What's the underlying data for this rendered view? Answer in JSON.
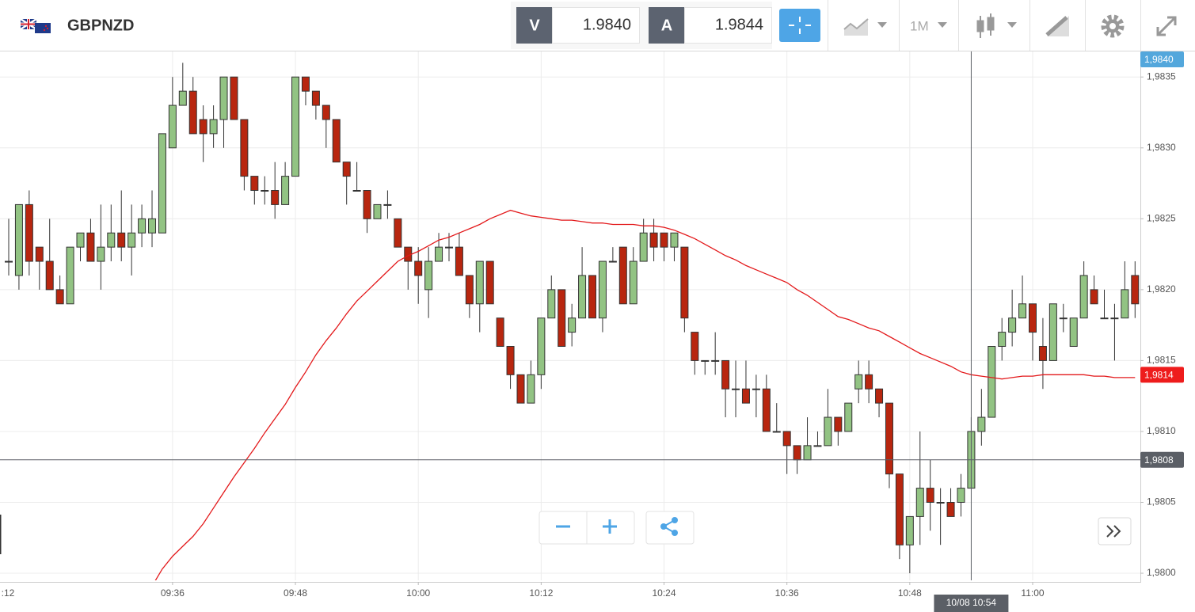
{
  "header": {
    "symbol": "GBPNZD",
    "sell": {
      "label": "V",
      "price": "1.9840"
    },
    "buy": {
      "label": "A",
      "price": "1.9844"
    },
    "timeframe": "1M"
  },
  "chart_data": {
    "type": "candlestick",
    "categories": [
      "09:20",
      "09:21",
      "09:22",
      "09:23",
      "09:24",
      "09:25",
      "09:26",
      "09:27",
      "09:28",
      "09:29",
      "09:30",
      "09:31",
      "09:32",
      "09:33",
      "09:34",
      "09:35",
      "09:36",
      "09:37",
      "09:38",
      "09:39",
      "09:40",
      "09:41",
      "09:42",
      "09:43",
      "09:44",
      "09:45",
      "09:46",
      "09:47",
      "09:48",
      "09:49",
      "09:50",
      "09:51",
      "09:52",
      "09:53",
      "09:54",
      "09:55",
      "09:56",
      "09:57",
      "09:58",
      "09:59",
      "10:00",
      "10:01",
      "10:02",
      "10:03",
      "10:04",
      "10:05",
      "10:06",
      "10:07",
      "10:08",
      "10:09",
      "10:10",
      "10:11",
      "10:12",
      "10:13",
      "10:14",
      "10:15",
      "10:16",
      "10:17",
      "10:18",
      "10:19",
      "10:20",
      "10:21",
      "10:22",
      "10:23",
      "10:24",
      "10:25",
      "10:26",
      "10:27",
      "10:28",
      "10:29",
      "10:30",
      "10:31",
      "10:32",
      "10:33",
      "10:34",
      "10:35",
      "10:36",
      "10:37",
      "10:38",
      "10:39",
      "10:40",
      "10:41",
      "10:42",
      "10:43",
      "10:44",
      "10:45",
      "10:46",
      "10:47",
      "10:48",
      "10:49",
      "10:50",
      "10:51",
      "10:52",
      "10:53",
      "10:54",
      "10:55",
      "10:56",
      "10:57",
      "10:58",
      "10:59",
      "11:00",
      "11:01",
      "11:02",
      "11:03",
      "11:04",
      "11:05",
      "11:06",
      "11:07",
      "11:08",
      "11:09",
      "11:10"
    ],
    "open": [
      1.9822,
      1.9821,
      1.9826,
      1.9823,
      1.9822,
      1.982,
      1.9819,
      1.9823,
      1.9824,
      1.9822,
      1.9823,
      1.9824,
      1.9823,
      1.9824,
      1.9824,
      1.9824,
      1.983,
      1.9833,
      1.9834,
      1.9832,
      1.9831,
      1.9832,
      1.9835,
      1.9832,
      1.9828,
      1.9827,
      1.9827,
      1.9826,
      1.9828,
      1.9835,
      1.9834,
      1.9833,
      1.9832,
      1.9829,
      1.9827,
      1.9827,
      1.9825,
      1.9826,
      1.9825,
      1.9823,
      1.9822,
      1.982,
      1.9822,
      1.9823,
      1.9823,
      1.9821,
      1.9819,
      1.9822,
      1.9818,
      1.9816,
      1.9814,
      1.9812,
      1.9814,
      1.9818,
      1.982,
      1.9817,
      1.9818,
      1.9821,
      1.9818,
      1.9822,
      1.9823,
      1.9819,
      1.9822,
      1.9824,
      1.9824,
      1.9823,
      1.9823,
      1.9817,
      1.9815,
      1.9815,
      1.9815,
      1.9813,
      1.9813,
      1.9813,
      1.9813,
      1.981,
      1.981,
      1.9809,
      1.9808,
      1.9809,
      1.9809,
      1.9811,
      1.981,
      1.9813,
      1.9814,
      1.9813,
      1.9812,
      1.9807,
      1.9802,
      1.9804,
      1.9806,
      1.9805,
      1.9805,
      1.9805,
      1.9806,
      1.981,
      1.9811,
      1.9816,
      1.9817,
      1.9818,
      1.9819,
      1.9816,
      1.9815,
      1.9818,
      1.9816,
      1.9818,
      1.982,
      1.9818,
      1.9818,
      1.9818,
      1.9821
    ],
    "high": [
      1.9825,
      1.9826,
      1.9827,
      1.9823,
      1.9825,
      1.9821,
      1.9823,
      1.9824,
      1.9825,
      1.9826,
      1.9826,
      1.9827,
      1.9826,
      1.9826,
      1.9827,
      1.9831,
      1.9835,
      1.9836,
      1.9835,
      1.9833,
      1.9833,
      1.9835,
      1.9835,
      1.9832,
      1.9828,
      1.9828,
      1.9829,
      1.9829,
      1.9835,
      1.9835,
      1.9834,
      1.9833,
      1.9832,
      1.9829,
      1.9829,
      1.9827,
      1.9826,
      1.9827,
      1.9825,
      1.9823,
      1.9823,
      1.9823,
      1.9824,
      1.9824,
      1.9824,
      1.9821,
      1.9822,
      1.9822,
      1.9818,
      1.9816,
      1.9814,
      1.9815,
      1.9818,
      1.9821,
      1.982,
      1.9819,
      1.9823,
      1.9821,
      1.9822,
      1.9823,
      1.9823,
      1.9823,
      1.9825,
      1.9825,
      1.9824,
      1.9824,
      1.9823,
      1.9817,
      1.9815,
      1.9817,
      1.9815,
      1.9815,
      1.9815,
      1.9814,
      1.9814,
      1.9812,
      1.981,
      1.9809,
      1.9811,
      1.981,
      1.9813,
      1.9811,
      1.9812,
      1.9815,
      1.9815,
      1.9813,
      1.9812,
      1.9807,
      1.9804,
      1.981,
      1.9808,
      1.9806,
      1.9806,
      1.9807,
      1.9811,
      1.9813,
      1.9816,
      1.9818,
      1.982,
      1.9821,
      1.9819,
      1.9818,
      1.9819,
      1.9819,
      1.9818,
      1.9822,
      1.9821,
      1.982,
      1.9819,
      1.9822,
      1.9822
    ],
    "low": [
      1.9821,
      1.982,
      1.9821,
      1.982,
      1.982,
      1.9819,
      1.9819,
      1.9822,
      1.9822,
      1.982,
      1.9822,
      1.9822,
      1.9821,
      1.9823,
      1.9823,
      1.9824,
      1.983,
      1.9833,
      1.9831,
      1.9829,
      1.983,
      1.983,
      1.9832,
      1.9827,
      1.9826,
      1.9826,
      1.9825,
      1.9826,
      1.9828,
      1.9833,
      1.9832,
      1.983,
      1.9829,
      1.9826,
      1.9827,
      1.9824,
      1.9825,
      1.9825,
      1.9823,
      1.982,
      1.9819,
      1.9818,
      1.9822,
      1.9822,
      1.9821,
      1.9818,
      1.9817,
      1.9819,
      1.9816,
      1.9813,
      1.9812,
      1.9812,
      1.9813,
      1.9818,
      1.9816,
      1.9816,
      1.9818,
      1.9818,
      1.9817,
      1.9822,
      1.9819,
      1.9819,
      1.9822,
      1.9822,
      1.9822,
      1.9822,
      1.9817,
      1.9814,
      1.9814,
      1.9814,
      1.9811,
      1.9811,
      1.9812,
      1.9811,
      1.981,
      1.981,
      1.9807,
      1.9807,
      1.9808,
      1.9809,
      1.9809,
      1.9809,
      1.981,
      1.9812,
      1.9812,
      1.9811,
      1.9806,
      1.9801,
      1.98,
      1.9802,
      1.9803,
      1.9802,
      1.9804,
      1.9804,
      1.9806,
      1.9809,
      1.9811,
      1.9815,
      1.9816,
      1.9818,
      1.9815,
      1.9813,
      1.9815,
      1.9817,
      1.9816,
      1.9818,
      1.9819,
      1.9818,
      1.9815,
      1.9818,
      1.9818
    ],
    "close": [
      1.9822,
      1.9826,
      1.9822,
      1.9822,
      1.982,
      1.9819,
      1.9823,
      1.9824,
      1.9822,
      1.9823,
      1.9824,
      1.9823,
      1.9824,
      1.9825,
      1.9825,
      1.9831,
      1.9833,
      1.9834,
      1.9831,
      1.9831,
      1.9832,
      1.9835,
      1.9832,
      1.9828,
      1.9827,
      1.9827,
      1.9826,
      1.9828,
      1.9835,
      1.9834,
      1.9833,
      1.9832,
      1.9829,
      1.9828,
      1.9827,
      1.9825,
      1.9826,
      1.9826,
      1.9823,
      1.9822,
      1.9821,
      1.9822,
      1.9823,
      1.9823,
      1.9821,
      1.9819,
      1.9822,
      1.9819,
      1.9816,
      1.9814,
      1.9812,
      1.9814,
      1.9818,
      1.982,
      1.9816,
      1.9818,
      1.9821,
      1.9818,
      1.9822,
      1.9822,
      1.9819,
      1.9822,
      1.9824,
      1.9823,
      1.9823,
      1.9824,
      1.9818,
      1.9815,
      1.9815,
      1.9815,
      1.9813,
      1.9813,
      1.9812,
      1.9813,
      1.981,
      1.981,
      1.9809,
      1.9808,
      1.9809,
      1.9809,
      1.9811,
      1.981,
      1.9812,
      1.9814,
      1.9813,
      1.9812,
      1.9807,
      1.9802,
      1.9804,
      1.9806,
      1.9805,
      1.9805,
      1.9804,
      1.9806,
      1.981,
      1.9811,
      1.9816,
      1.9817,
      1.9818,
      1.9819,
      1.9817,
      1.9815,
      1.9819,
      1.9818,
      1.9818,
      1.9821,
      1.9819,
      1.9818,
      1.9818,
      1.982,
      1.9819
    ],
    "up_color": "#92c383",
    "down_color": "#b8260f",
    "moving_average": {
      "color": "#e3191b",
      "values": [
        null,
        null,
        null,
        null,
        null,
        null,
        null,
        null,
        null,
        null,
        null,
        null,
        null,
        null,
        null,
        1.98003,
        1.98012,
        1.98019,
        1.98026,
        1.98035,
        1.98046,
        1.98057,
        1.98068,
        1.98078,
        1.98088,
        1.98099,
        1.98109,
        1.98119,
        1.98131,
        1.98142,
        1.98154,
        1.98164,
        1.98173,
        1.98183,
        1.98192,
        1.98199,
        1.98206,
        1.98213,
        1.9822,
        1.98224,
        1.98227,
        1.98231,
        1.98235,
        1.98237,
        1.9824,
        1.98243,
        1.98246,
        1.9825,
        1.98253,
        1.98256,
        1.98254,
        1.98252,
        1.98251,
        1.9825,
        1.98249,
        1.98249,
        1.98248,
        1.98247,
        1.98247,
        1.98246,
        1.98246,
        1.98246,
        1.98245,
        1.98245,
        1.98244,
        1.98242,
        1.98239,
        1.98236,
        1.98232,
        1.98228,
        1.98224,
        1.98221,
        1.98217,
        1.98214,
        1.98211,
        1.98208,
        1.98205,
        1.982,
        1.98196,
        1.98191,
        1.98186,
        1.98181,
        1.98179,
        1.98176,
        1.98173,
        1.98171,
        1.98167,
        1.98163,
        1.98159,
        1.98155,
        1.98152,
        1.98149,
        1.98146,
        1.98142,
        1.9814,
        1.98139,
        1.98138,
        1.98137,
        1.98138,
        1.98139,
        1.98139,
        1.9814,
        1.9814,
        1.9814,
        1.9814,
        1.9814,
        1.98139,
        1.98139,
        1.98138,
        1.98138,
        1.98138
      ]
    },
    "ylim": [
      1.97995,
      1.98368
    ],
    "yticks": [
      {
        "value": 1.98,
        "label": "1,9800"
      },
      {
        "value": 1.9805,
        "label": "1,9805"
      },
      {
        "value": 1.981,
        "label": "1,9810"
      },
      {
        "value": 1.9815,
        "label": "1,9815"
      },
      {
        "value": 1.982,
        "label": "1,9820"
      },
      {
        "value": 1.9825,
        "label": "1,9825"
      },
      {
        "value": 1.983,
        "label": "1,9830"
      },
      {
        "value": 1.9835,
        "label": "1,9835"
      }
    ],
    "xticks": [
      ":12",
      "09:36",
      "09:48",
      "10:00",
      "10:12",
      "10:24",
      "10:36",
      "10:48",
      "11:00"
    ],
    "grid": true,
    "price_badges": [
      {
        "value": 1.984,
        "label": "1,9840",
        "color": "#53a7dc"
      },
      {
        "value": 1.9814,
        "label": "1,9814",
        "color": "#ee1c1c"
      }
    ],
    "crosshair": {
      "price": {
        "value": 1.9808,
        "label": "1,9808"
      },
      "time": "10/08 10:54",
      "color": "#5b5f66"
    }
  }
}
